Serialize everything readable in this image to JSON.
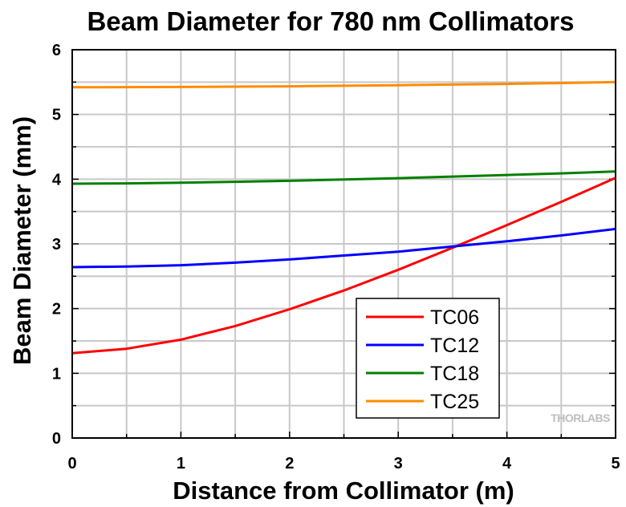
{
  "chart_data": {
    "type": "line",
    "title": "Beam Diameter for 780 nm Collimators",
    "xlabel": "Distance from Collimator (m)",
    "ylabel": "Beam Diameter (mm)",
    "xlim": [
      0,
      5
    ],
    "ylim": [
      0,
      6
    ],
    "x_ticks": [
      "0",
      "1",
      "2",
      "3",
      "4",
      "5"
    ],
    "y_ticks": [
      "0",
      "1",
      "2",
      "3",
      "4",
      "5",
      "6"
    ],
    "grid": true,
    "legend_position": "lower-right",
    "x": [
      0,
      0.5,
      1,
      1.5,
      2,
      2.5,
      3,
      3.5,
      4,
      4.5,
      5
    ],
    "series": [
      {
        "name": "TC06",
        "color": "#ff0000",
        "values": [
          1.31,
          1.38,
          1.52,
          1.73,
          1.99,
          2.28,
          2.6,
          2.94,
          3.29,
          3.65,
          4.02
        ]
      },
      {
        "name": "TC12",
        "color": "#0000ff",
        "values": [
          2.64,
          2.65,
          2.67,
          2.71,
          2.76,
          2.82,
          2.88,
          2.96,
          3.04,
          3.13,
          3.23
        ]
      },
      {
        "name": "TC18",
        "color": "#008000",
        "values": [
          3.93,
          3.935,
          3.945,
          3.96,
          3.975,
          3.995,
          4.015,
          4.04,
          4.065,
          4.09,
          4.12
        ]
      },
      {
        "name": "TC25",
        "color": "#ff8c00",
        "values": [
          5.42,
          5.422,
          5.425,
          5.43,
          5.435,
          5.443,
          5.452,
          5.462,
          5.472,
          5.485,
          5.5
        ]
      }
    ]
  },
  "watermark": "THORLABS"
}
